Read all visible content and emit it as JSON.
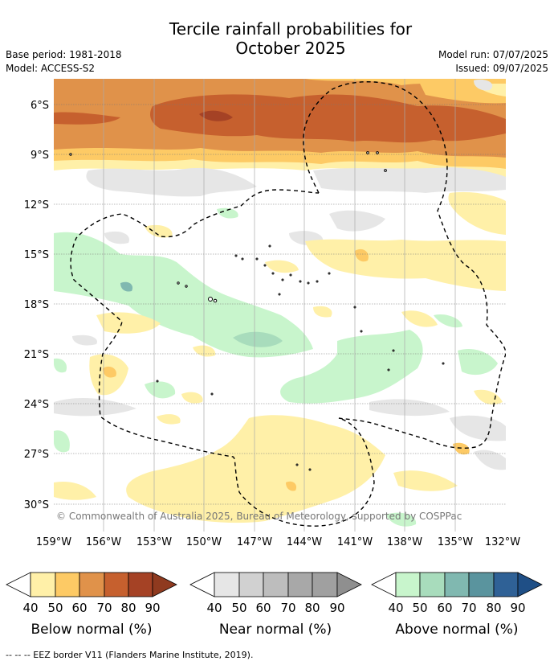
{
  "header": {
    "title_line1": "Tercile rainfall probabilities for",
    "title_line2": "October 2025",
    "base_period": "Base period: 1981-2018",
    "model": "Model: ACCESS-S2",
    "model_run": "Model run: 07/07/2025",
    "issued": "Issued: 09/07/2025"
  },
  "map": {
    "lat_labels": [
      "6°S",
      "9°S",
      "12°S",
      "15°S",
      "18°S",
      "21°S",
      "24°S",
      "27°S",
      "30°S"
    ],
    "lon_labels": [
      "159°W",
      "156°W",
      "153°W",
      "150°W",
      "147°W",
      "144°W",
      "141°W",
      "138°W",
      "135°W",
      "132°W"
    ],
    "copyright": "© Commonwealth of Australia 2025, Bureau of Meteorology, supported by COSPPac",
    "colors": {
      "below": [
        "#fff0a8",
        "#fdca65",
        "#e0924a",
        "#c6602e",
        "#a54225"
      ],
      "near": [
        "#e6e6e6",
        "#d1d1d1",
        "#bdbdbd",
        "#a8a8a8",
        "#8f8f8f"
      ],
      "above": [
        "#c8f5cc",
        "#a8dcbc",
        "#80b8b0",
        "#5a949e",
        "#2f6196"
      ]
    }
  },
  "legends": {
    "ticks": [
      "40",
      "50",
      "60",
      "70",
      "80",
      "90"
    ],
    "below_label": "Below normal (%)",
    "near_label": "Near normal (%)",
    "above_label": "Above normal (%)"
  },
  "footer": "--  --  -- EEZ border V11 (Flanders Marine Institute, 2019)."
}
